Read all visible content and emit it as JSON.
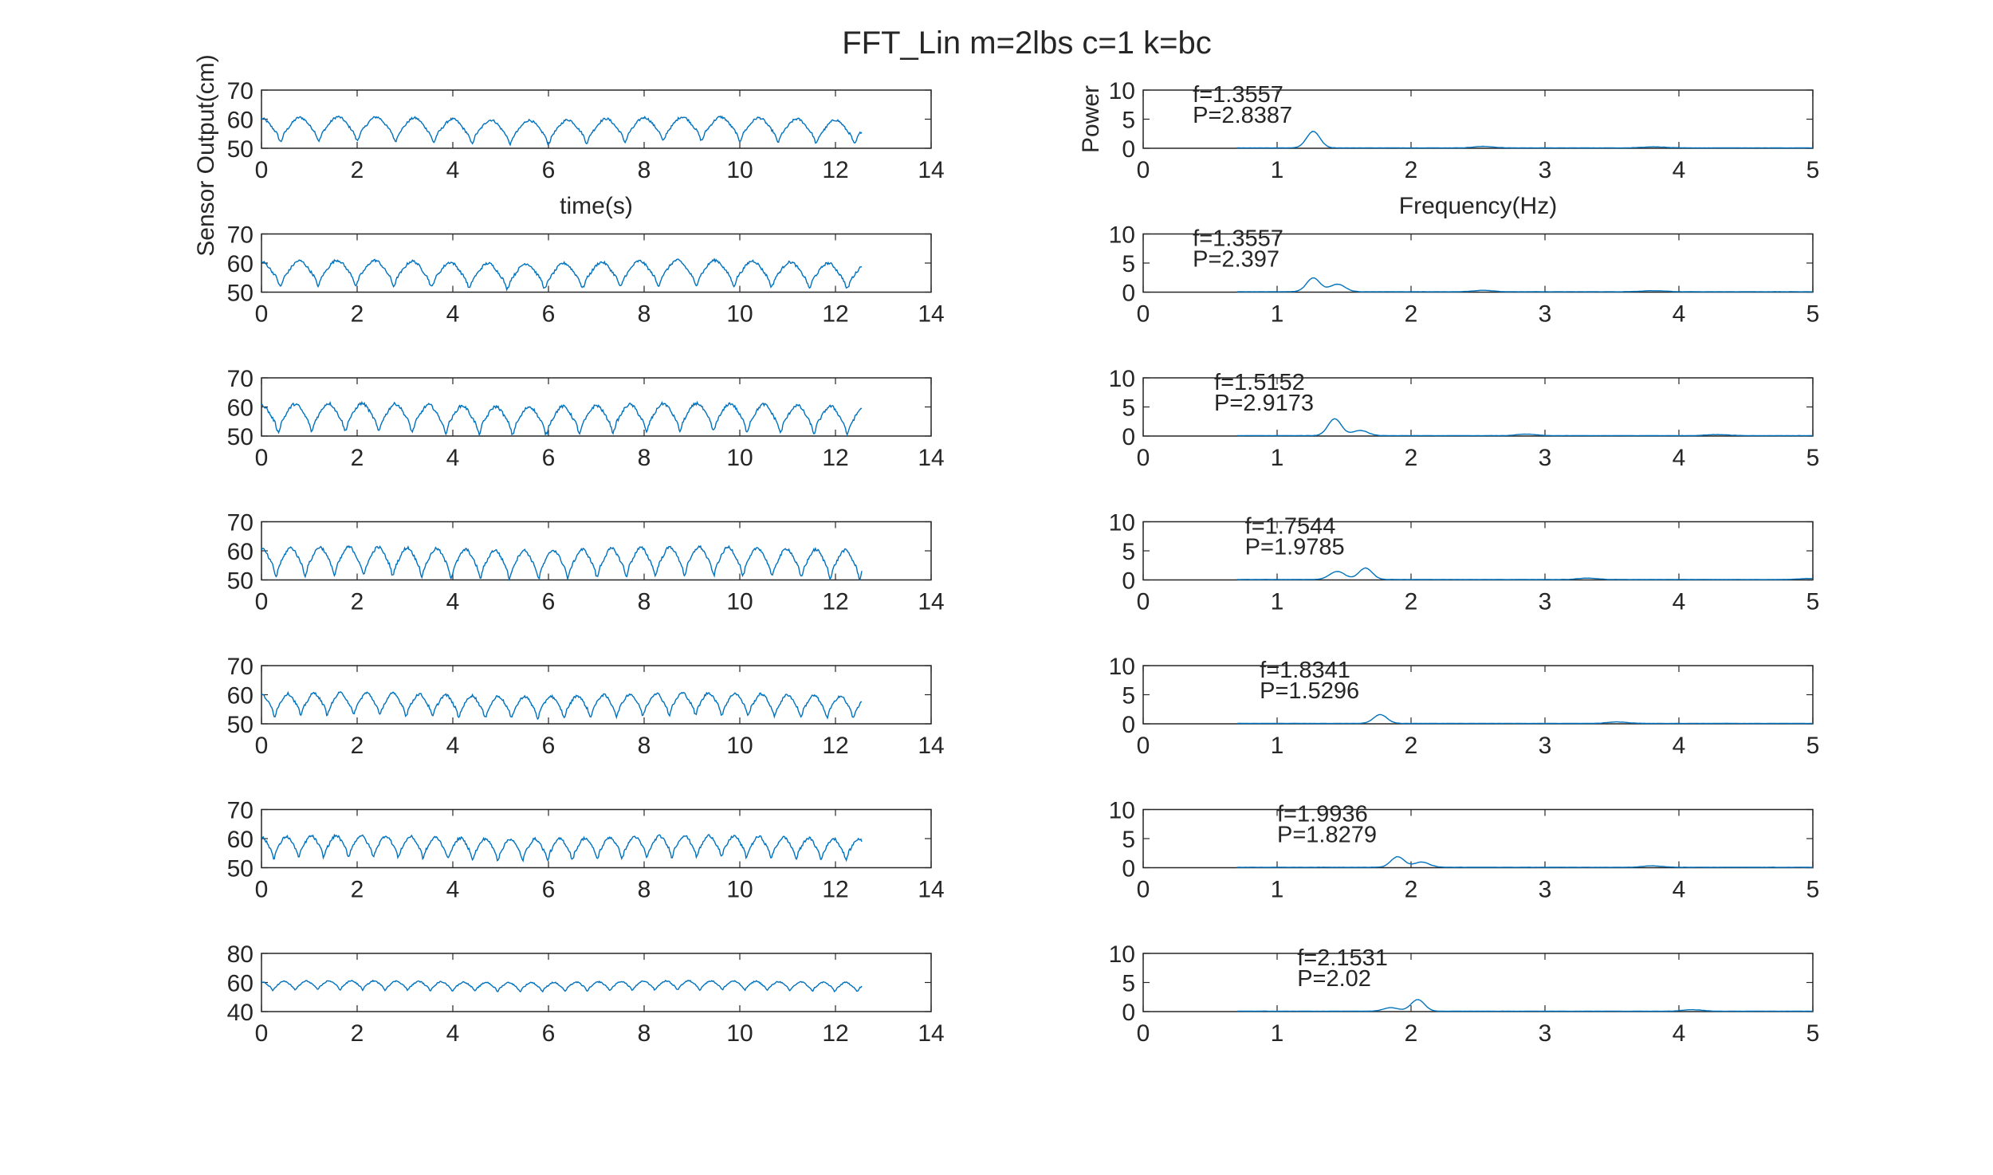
{
  "figure": {
    "title": "FFT_Lin m=2lbs c=1 k=bc",
    "line_color": "#0072bd"
  },
  "chart_data": [
    {
      "type": "line",
      "panel": "time",
      "row": 1,
      "title": "",
      "xlabel": "time(s)",
      "ylabel": "Sensor Output(cm)",
      "xlim": [
        0,
        14
      ],
      "ylim": [
        50,
        70
      ],
      "xticks": [
        0,
        2,
        4,
        6,
        8,
        10,
        12,
        14
      ],
      "yticks": [
        50,
        60,
        70
      ],
      "x_end": 12.55,
      "period": 0.8,
      "mean": 57.5,
      "amp": 3.0,
      "noise": 0.8
    },
    {
      "type": "line",
      "panel": "fft",
      "row": 1,
      "title": "",
      "xlabel": "Frequency(Hz)",
      "ylabel": "Power",
      "xlim": [
        0,
        5
      ],
      "ylim": [
        0,
        10
      ],
      "xticks": [
        0,
        1,
        2,
        3,
        4,
        5
      ],
      "yticks": [
        0,
        5,
        10
      ],
      "x_start": 0.7,
      "x_end": 5,
      "peak_x": 1.27,
      "peak_y": 2.8387,
      "second_peak_x": null,
      "second_peak_y": null,
      "annotation": [
        "f=1.3557",
        "P=2.8387"
      ]
    },
    {
      "type": "line",
      "panel": "time",
      "row": 2,
      "title": "",
      "xlabel": "",
      "ylabel": "",
      "xlim": [
        0,
        14
      ],
      "ylim": [
        50,
        70
      ],
      "xticks": [
        0,
        2,
        4,
        6,
        8,
        10,
        12,
        14
      ],
      "yticks": [
        50,
        60,
        70
      ],
      "x_end": 12.55,
      "period": 0.79,
      "mean": 57.5,
      "amp": 3.2,
      "noise": 0.9
    },
    {
      "type": "line",
      "panel": "fft",
      "row": 2,
      "title": "",
      "xlabel": "",
      "ylabel": "",
      "xlim": [
        0,
        5
      ],
      "ylim": [
        0,
        10
      ],
      "xticks": [
        0,
        1,
        2,
        3,
        4,
        5
      ],
      "yticks": [
        0,
        5,
        10
      ],
      "x_start": 0.7,
      "x_end": 5,
      "peak_x": 1.27,
      "peak_y": 2.397,
      "second_peak_x": 1.45,
      "second_peak_y": 1.3,
      "annotation": [
        "f=1.3557",
        "P=2.397"
      ]
    },
    {
      "type": "line",
      "panel": "time",
      "row": 3,
      "title": "",
      "xlabel": "",
      "ylabel": "",
      "xlim": [
        0,
        14
      ],
      "ylim": [
        50,
        70
      ],
      "xticks": [
        0,
        2,
        4,
        6,
        8,
        10,
        12,
        14
      ],
      "yticks": [
        50,
        60,
        70
      ],
      "x_end": 12.55,
      "period": 0.7,
      "mean": 57.5,
      "amp": 3.5,
      "noise": 1.0
    },
    {
      "type": "line",
      "panel": "fft",
      "row": 3,
      "title": "",
      "xlabel": "",
      "ylabel": "",
      "xlim": [
        0,
        5
      ],
      "ylim": [
        0,
        10
      ],
      "xticks": [
        0,
        1,
        2,
        3,
        4,
        5
      ],
      "yticks": [
        0,
        5,
        10
      ],
      "x_start": 0.7,
      "x_end": 5,
      "peak_x": 1.43,
      "peak_y": 2.9173,
      "second_peak_x": 1.62,
      "second_peak_y": 0.9,
      "annotation": [
        "f=1.5152",
        "P=2.9173"
      ]
    },
    {
      "type": "line",
      "panel": "time",
      "row": 4,
      "title": "",
      "xlabel": "",
      "ylabel": "",
      "xlim": [
        0,
        14
      ],
      "ylim": [
        50,
        70
      ],
      "xticks": [
        0,
        2,
        4,
        6,
        8,
        10,
        12,
        14
      ],
      "yticks": [
        50,
        60,
        70
      ],
      "x_end": 12.55,
      "period": 0.61,
      "mean": 57.5,
      "amp": 3.6,
      "noise": 1.0
    },
    {
      "type": "line",
      "panel": "fft",
      "row": 4,
      "title": "",
      "xlabel": "",
      "ylabel": "",
      "xlim": [
        0,
        5
      ],
      "ylim": [
        0,
        10
      ],
      "xticks": [
        0,
        1,
        2,
        3,
        4,
        5
      ],
      "yticks": [
        0,
        5,
        10
      ],
      "x_start": 0.7,
      "x_end": 5,
      "peak_x": 1.66,
      "peak_y": 1.9785,
      "second_peak_x": 1.45,
      "second_peak_y": 1.4,
      "annotation": [
        "f=1.7544",
        "P=1.9785"
      ]
    },
    {
      "type": "line",
      "panel": "time",
      "row": 5,
      "title": "",
      "xlabel": "",
      "ylabel": "",
      "xlim": [
        0,
        14
      ],
      "ylim": [
        50,
        70
      ],
      "xticks": [
        0,
        2,
        4,
        6,
        8,
        10,
        12,
        14
      ],
      "yticks": [
        50,
        60,
        70
      ],
      "x_end": 12.55,
      "period": 0.55,
      "mean": 57.5,
      "amp": 2.8,
      "noise": 0.9
    },
    {
      "type": "line",
      "panel": "fft",
      "row": 5,
      "title": "",
      "xlabel": "",
      "ylabel": "",
      "xlim": [
        0,
        5
      ],
      "ylim": [
        0,
        10
      ],
      "xticks": [
        0,
        1,
        2,
        3,
        4,
        5
      ],
      "yticks": [
        0,
        5,
        10
      ],
      "x_start": 0.7,
      "x_end": 5,
      "peak_x": 1.77,
      "peak_y": 1.5296,
      "second_peak_x": null,
      "second_peak_y": null,
      "annotation": [
        "f=1.8341",
        "P=1.5296"
      ]
    },
    {
      "type": "line",
      "panel": "time",
      "row": 6,
      "title": "",
      "xlabel": "",
      "ylabel": "",
      "xlim": [
        0,
        14
      ],
      "ylim": [
        50,
        70
      ],
      "xticks": [
        0,
        2,
        4,
        6,
        8,
        10,
        12,
        14
      ],
      "yticks": [
        50,
        60,
        70
      ],
      "x_end": 12.55,
      "period": 0.52,
      "mean": 58.0,
      "amp": 2.7,
      "noise": 0.9
    },
    {
      "type": "line",
      "panel": "fft",
      "row": 6,
      "title": "",
      "xlabel": "",
      "ylabel": "",
      "xlim": [
        0,
        5
      ],
      "ylim": [
        0,
        10
      ],
      "xticks": [
        0,
        1,
        2,
        3,
        4,
        5
      ],
      "yticks": [
        0,
        5,
        10
      ],
      "x_start": 0.7,
      "x_end": 5,
      "peak_x": 1.9,
      "peak_y": 1.8279,
      "second_peak_x": 2.08,
      "second_peak_y": 0.9,
      "annotation": [
        "f=1.9936",
        "P=1.8279"
      ]
    },
    {
      "type": "line",
      "panel": "time",
      "row": 7,
      "title": "",
      "xlabel": "",
      "ylabel": "",
      "xlim": [
        0,
        14
      ],
      "ylim": [
        40,
        80
      ],
      "xticks": [
        0,
        2,
        4,
        6,
        8,
        10,
        12,
        14
      ],
      "yticks": [
        40,
        60,
        80
      ],
      "x_end": 12.55,
      "period": 0.47,
      "mean": 58.5,
      "amp": 2.3,
      "noise": 0.8
    },
    {
      "type": "line",
      "panel": "fft",
      "row": 7,
      "title": "",
      "xlabel": "",
      "ylabel": "",
      "xlim": [
        0,
        5
      ],
      "ylim": [
        0,
        10
      ],
      "xticks": [
        0,
        1,
        2,
        3,
        4,
        5
      ],
      "yticks": [
        0,
        5,
        10
      ],
      "x_start": 0.7,
      "x_end": 5,
      "peak_x": 2.05,
      "peak_y": 2.02,
      "second_peak_x": 1.85,
      "second_peak_y": 0.6,
      "annotation": [
        "f=2.1531",
        "P=2.02"
      ]
    }
  ]
}
